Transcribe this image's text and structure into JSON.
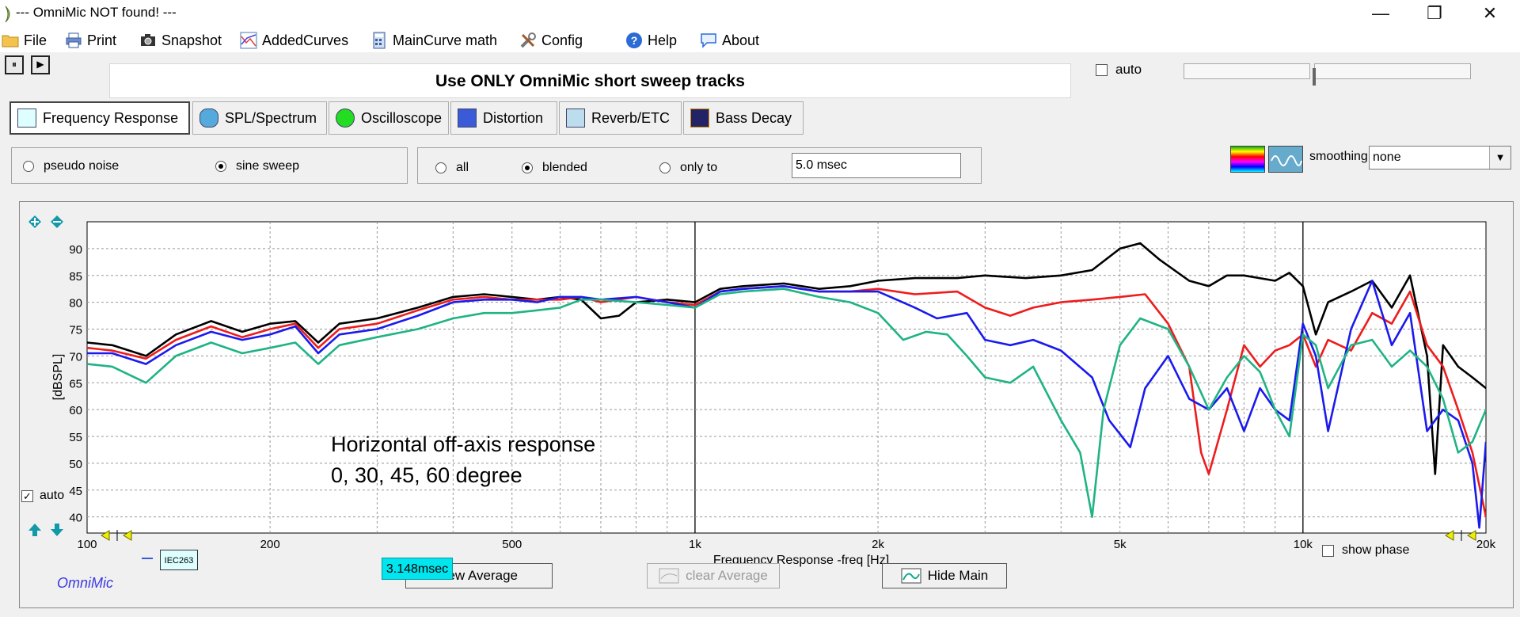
{
  "window": {
    "title": "--- OmniMic NOT found! ---",
    "minimize_glyph": "—",
    "restore_glyph": "❐",
    "close_glyph": "✕"
  },
  "menu": [
    {
      "label": "File",
      "icon": "folder-icon"
    },
    {
      "label": "Print",
      "icon": "printer-icon"
    },
    {
      "label": "Snapshot",
      "icon": "camera-icon"
    },
    {
      "label": "AddedCurves",
      "icon": "curves-icon"
    },
    {
      "label": "MainCurve math",
      "icon": "calculator-icon"
    },
    {
      "label": "Config",
      "icon": "tools-icon"
    },
    {
      "label": "Help",
      "icon": "help-icon"
    },
    {
      "label": "About",
      "icon": "speech-bubble-icon"
    }
  ],
  "toolbar": {
    "pause_glyph": "⏸",
    "play_glyph": "▶"
  },
  "notice": "Use ONLY OmniMic short sweep tracks",
  "top_auto": {
    "label": "auto",
    "checked": false
  },
  "tabs": [
    {
      "label": "Frequency Response",
      "active": true
    },
    {
      "label": "SPL/Spectrum",
      "active": false
    },
    {
      "label": "Oscilloscope",
      "active": false
    },
    {
      "label": "Distortion",
      "active": false
    },
    {
      "label": "Reverb/ETC",
      "active": false
    },
    {
      "label": "Bass Decay",
      "active": false
    }
  ],
  "signal": {
    "options": [
      "pseudo noise",
      "sine sweep"
    ],
    "selected": "sine sweep"
  },
  "gating": {
    "options": [
      "all",
      "blended",
      "only to"
    ],
    "selected": "blended",
    "gate_value": "5.0 msec"
  },
  "smoothing": {
    "label": "smoothing",
    "value": "none",
    "arrow": "▼"
  },
  "plot_controls": {
    "auto_label": "auto",
    "auto_checked": true,
    "show_phase_label": "show phase",
    "show_phase_checked": false,
    "iec_label": "IEC263",
    "brand": "OmniMic",
    "time_badge": "3.148msec"
  },
  "buttons": {
    "new_average": "new Average",
    "clear_average": "clear Average",
    "hide_main": "Hide Main"
  },
  "colors": {
    "black": "#000000",
    "red": "#ee1c1c",
    "blue": "#1a1aee",
    "green": "#1fb385",
    "badge": "#00e5ee",
    "brand": "#3a3ae0"
  },
  "chart_data": {
    "type": "line",
    "xlabel": "Frequency Response -freq [Hz]",
    "ylabel": "[dBSPL]",
    "x_scale": "log",
    "xlim": [
      100,
      20000
    ],
    "ylim": [
      37,
      95
    ],
    "grid": true,
    "x_ticks": [
      {
        "value": 100,
        "label": "100"
      },
      {
        "value": 200,
        "label": "200"
      },
      {
        "value": 500,
        "label": "500"
      },
      {
        "value": 1000,
        "label": "1k"
      },
      {
        "value": 2000,
        "label": "2k"
      },
      {
        "value": 5000,
        "label": "5k"
      },
      {
        "value": 10000,
        "label": "10k"
      },
      {
        "value": 20000,
        "label": "20k"
      }
    ],
    "y_ticks": [
      40,
      45,
      50,
      55,
      60,
      65,
      70,
      75,
      80,
      85,
      90
    ],
    "annotation": [
      "Horizontal off-axis response",
      "0, 30, 45, 60 degree"
    ],
    "series": [
      {
        "color": "#000000",
        "points": [
          [
            100,
            72.5
          ],
          [
            110,
            72
          ],
          [
            125,
            70
          ],
          [
            140,
            74
          ],
          [
            160,
            76.5
          ],
          [
            180,
            74.5
          ],
          [
            200,
            76
          ],
          [
            220,
            76.5
          ],
          [
            240,
            72.5
          ],
          [
            260,
            76
          ],
          [
            300,
            77
          ],
          [
            350,
            79
          ],
          [
            400,
            81
          ],
          [
            450,
            81.5
          ],
          [
            500,
            81
          ],
          [
            550,
            80.5
          ],
          [
            600,
            81
          ],
          [
            650,
            80.5
          ],
          [
            700,
            77
          ],
          [
            750,
            77.5
          ],
          [
            800,
            80
          ],
          [
            900,
            80.5
          ],
          [
            1000,
            80
          ],
          [
            1100,
            82.5
          ],
          [
            1200,
            83
          ],
          [
            1400,
            83.5
          ],
          [
            1600,
            82.5
          ],
          [
            1800,
            83
          ],
          [
            2000,
            84
          ],
          [
            2300,
            84.5
          ],
          [
            2700,
            84.5
          ],
          [
            3000,
            85
          ],
          [
            3500,
            84.5
          ],
          [
            4000,
            85
          ],
          [
            4500,
            86
          ],
          [
            5000,
            90
          ],
          [
            5400,
            91
          ],
          [
            5800,
            88
          ],
          [
            6500,
            84
          ],
          [
            7000,
            83
          ],
          [
            7500,
            85
          ],
          [
            8000,
            85
          ],
          [
            9000,
            84
          ],
          [
            9500,
            85.5
          ],
          [
            10000,
            83
          ],
          [
            10500,
            74
          ],
          [
            11000,
            80
          ],
          [
            12000,
            82
          ],
          [
            13000,
            84
          ],
          [
            14000,
            79
          ],
          [
            15000,
            85
          ],
          [
            16000,
            70
          ],
          [
            16500,
            48
          ],
          [
            17000,
            72
          ],
          [
            18000,
            68
          ],
          [
            19000,
            66
          ],
          [
            20000,
            64
          ]
        ]
      },
      {
        "color": "#ee1c1c",
        "points": [
          [
            100,
            71.5
          ],
          [
            110,
            71
          ],
          [
            125,
            69.5
          ],
          [
            140,
            73
          ],
          [
            160,
            75.5
          ],
          [
            180,
            73.5
          ],
          [
            200,
            75
          ],
          [
            220,
            76
          ],
          [
            240,
            71.5
          ],
          [
            260,
            75
          ],
          [
            300,
            76
          ],
          [
            350,
            78.5
          ],
          [
            400,
            80.5
          ],
          [
            450,
            81
          ],
          [
            500,
            80.5
          ],
          [
            550,
            80.5
          ],
          [
            600,
            80.5
          ],
          [
            650,
            81
          ],
          [
            700,
            80
          ],
          [
            800,
            81
          ],
          [
            900,
            80
          ],
          [
            1000,
            79.5
          ],
          [
            1100,
            82
          ],
          [
            1200,
            82.5
          ],
          [
            1400,
            83
          ],
          [
            1600,
            82
          ],
          [
            1800,
            82
          ],
          [
            2000,
            82.5
          ],
          [
            2300,
            81.5
          ],
          [
            2700,
            82
          ],
          [
            3000,
            79
          ],
          [
            3300,
            77.5
          ],
          [
            3600,
            79
          ],
          [
            4000,
            80
          ],
          [
            4500,
            80.5
          ],
          [
            5000,
            81
          ],
          [
            5500,
            81.5
          ],
          [
            6000,
            76
          ],
          [
            6500,
            68
          ],
          [
            6800,
            52
          ],
          [
            7000,
            48
          ],
          [
            7500,
            60
          ],
          [
            8000,
            72
          ],
          [
            8500,
            68
          ],
          [
            9000,
            71
          ],
          [
            9500,
            72
          ],
          [
            10000,
            74
          ],
          [
            10500,
            68
          ],
          [
            11000,
            73
          ],
          [
            12000,
            71
          ],
          [
            13000,
            78
          ],
          [
            14000,
            76
          ],
          [
            15000,
            82
          ],
          [
            16000,
            72
          ],
          [
            17000,
            68
          ],
          [
            18000,
            60
          ],
          [
            19000,
            52
          ],
          [
            20000,
            40
          ]
        ]
      },
      {
        "color": "#1a1aee",
        "points": [
          [
            100,
            70.5
          ],
          [
            110,
            70.5
          ],
          [
            125,
            68.5
          ],
          [
            140,
            72
          ],
          [
            160,
            74.5
          ],
          [
            180,
            73
          ],
          [
            200,
            74
          ],
          [
            220,
            75.5
          ],
          [
            240,
            70.5
          ],
          [
            260,
            74
          ],
          [
            300,
            75
          ],
          [
            350,
            77.5
          ],
          [
            400,
            80
          ],
          [
            450,
            80.5
          ],
          [
            500,
            80.5
          ],
          [
            550,
            80
          ],
          [
            600,
            81
          ],
          [
            650,
            81
          ],
          [
            700,
            80.5
          ],
          [
            800,
            81
          ],
          [
            900,
            80
          ],
          [
            1000,
            79
          ],
          [
            1100,
            82
          ],
          [
            1200,
            82.5
          ],
          [
            1400,
            83
          ],
          [
            1600,
            82
          ],
          [
            1800,
            82
          ],
          [
            2000,
            82
          ],
          [
            2300,
            79
          ],
          [
            2500,
            77
          ],
          [
            2800,
            78
          ],
          [
            3000,
            73
          ],
          [
            3300,
            72
          ],
          [
            3600,
            73
          ],
          [
            4000,
            71
          ],
          [
            4500,
            66
          ],
          [
            4800,
            58
          ],
          [
            5200,
            53
          ],
          [
            5500,
            64
          ],
          [
            6000,
            70
          ],
          [
            6500,
            62
          ],
          [
            7000,
            60
          ],
          [
            7500,
            64
          ],
          [
            8000,
            56
          ],
          [
            8500,
            64
          ],
          [
            9000,
            60
          ],
          [
            9500,
            58
          ],
          [
            10000,
            76
          ],
          [
            10500,
            70
          ],
          [
            11000,
            56
          ],
          [
            12000,
            75
          ],
          [
            13000,
            84
          ],
          [
            14000,
            72
          ],
          [
            15000,
            78
          ],
          [
            16000,
            56
          ],
          [
            17000,
            60
          ],
          [
            18000,
            58
          ],
          [
            19000,
            50
          ],
          [
            19500,
            38
          ],
          [
            20000,
            54
          ]
        ]
      },
      {
        "color": "#1fb385",
        "points": [
          [
            100,
            68.5
          ],
          [
            110,
            68
          ],
          [
            125,
            65
          ],
          [
            140,
            70
          ],
          [
            160,
            72.5
          ],
          [
            180,
            70.5
          ],
          [
            200,
            71.5
          ],
          [
            220,
            72.5
          ],
          [
            240,
            68.5
          ],
          [
            260,
            72
          ],
          [
            300,
            73.5
          ],
          [
            350,
            75
          ],
          [
            400,
            77
          ],
          [
            450,
            78
          ],
          [
            500,
            78
          ],
          [
            550,
            78.5
          ],
          [
            600,
            79
          ],
          [
            650,
            80.5
          ],
          [
            700,
            80.5
          ],
          [
            800,
            80
          ],
          [
            900,
            79.5
          ],
          [
            1000,
            79
          ],
          [
            1100,
            81.5
          ],
          [
            1200,
            82
          ],
          [
            1400,
            82.5
          ],
          [
            1600,
            81
          ],
          [
            1800,
            80
          ],
          [
            2000,
            78
          ],
          [
            2200,
            73
          ],
          [
            2400,
            74.5
          ],
          [
            2600,
            74
          ],
          [
            2800,
            70
          ],
          [
            3000,
            66
          ],
          [
            3300,
            65
          ],
          [
            3600,
            68
          ],
          [
            4000,
            58
          ],
          [
            4300,
            52
          ],
          [
            4500,
            40
          ],
          [
            4700,
            60
          ],
          [
            5000,
            72
          ],
          [
            5400,
            77
          ],
          [
            6000,
            75
          ],
          [
            6500,
            68
          ],
          [
            7000,
            60
          ],
          [
            7500,
            66
          ],
          [
            8000,
            70
          ],
          [
            8500,
            67
          ],
          [
            9000,
            60
          ],
          [
            9500,
            55
          ],
          [
            10000,
            74
          ],
          [
            10500,
            72
          ],
          [
            11000,
            64
          ],
          [
            12000,
            72
          ],
          [
            13000,
            73
          ],
          [
            14000,
            68
          ],
          [
            15000,
            71
          ],
          [
            16000,
            68
          ],
          [
            17000,
            62
          ],
          [
            18000,
            52
          ],
          [
            19000,
            54
          ],
          [
            20000,
            60
          ]
        ]
      }
    ]
  }
}
